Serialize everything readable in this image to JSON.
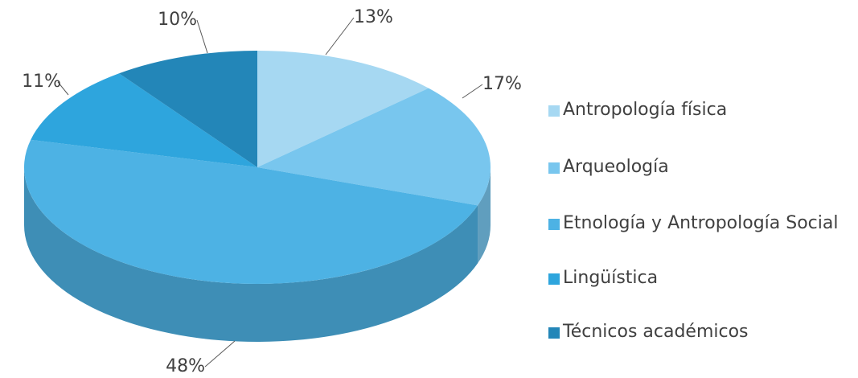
{
  "chart_data": {
    "type": "pie3d",
    "categories": [
      "Antropología física",
      "Arqueología",
      "Etnología y Antropología Social",
      "Lingüística",
      "Técnicos académicos"
    ],
    "values": [
      13,
      17,
      48,
      11,
      10
    ],
    "value_labels": [
      "13%",
      "17%",
      "48%",
      "11%",
      "10%"
    ],
    "colors": [
      "#a6d8f2",
      "#78c6ee",
      "#4db2e4",
      "#2ea5dd",
      "#2386b8"
    ],
    "legend": "right"
  }
}
